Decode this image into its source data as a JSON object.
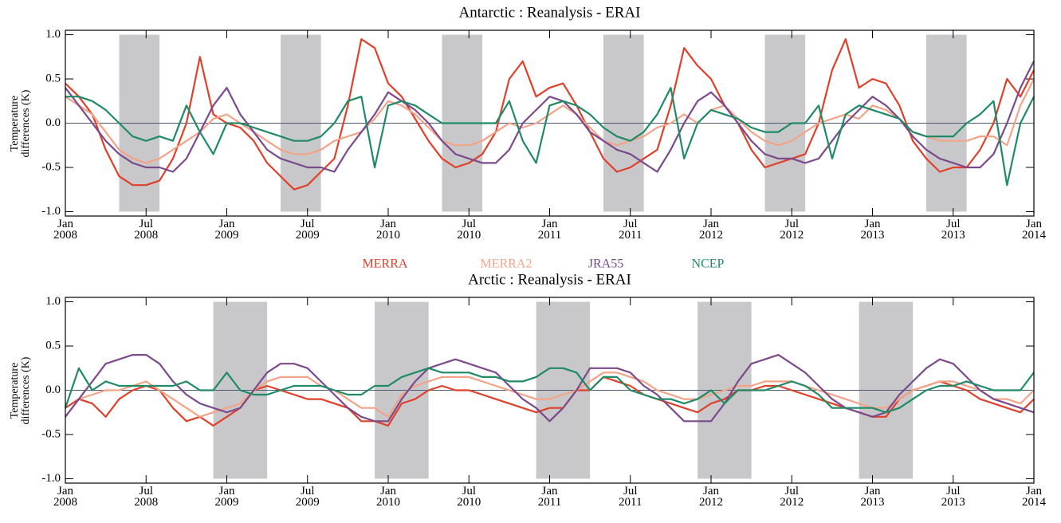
{
  "chart_data": [
    {
      "type": "line",
      "title": "Antarctic : Reanalysis - ERAI",
      "y_label": "Temperature differences (K)",
      "legend": true,
      "zero_line": true,
      "x": [
        "2008-01",
        "2008-02",
        "2008-03",
        "2008-04",
        "2008-05",
        "2008-06",
        "2008-07",
        "2008-08",
        "2008-09",
        "2008-10",
        "2008-11",
        "2008-12",
        "2009-01",
        "2009-02",
        "2009-03",
        "2009-04",
        "2009-05",
        "2009-06",
        "2009-07",
        "2009-08",
        "2009-09",
        "2009-10",
        "2009-11",
        "2009-12",
        "2010-01",
        "2010-02",
        "2010-03",
        "2010-04",
        "2010-05",
        "2010-06",
        "2010-07",
        "2010-08",
        "2010-09",
        "2010-10",
        "2010-11",
        "2010-12",
        "2011-01",
        "2011-02",
        "2011-03",
        "2011-04",
        "2011-05",
        "2011-06",
        "2011-07",
        "2011-08",
        "2011-09",
        "2011-10",
        "2011-11",
        "2011-12",
        "2012-01",
        "2012-02",
        "2012-03",
        "2012-04",
        "2012-05",
        "2012-06",
        "2012-07",
        "2012-08",
        "2012-09",
        "2012-10",
        "2012-11",
        "2012-12",
        "2013-01",
        "2013-02",
        "2013-03",
        "2013-04",
        "2013-05",
        "2013-06",
        "2013-07",
        "2013-08",
        "2013-09",
        "2013-10",
        "2013-11",
        "2013-12",
        "2014-01"
      ],
      "series": [
        {
          "name": "MERRA",
          "color": "#e0402a",
          "values": [
            0.45,
            0.3,
            0.1,
            -0.3,
            -0.6,
            -0.7,
            -0.7,
            -0.65,
            -0.4,
            0.0,
            0.75,
            0.1,
            0.0,
            -0.05,
            -0.2,
            -0.45,
            -0.6,
            -0.75,
            -0.7,
            -0.55,
            -0.4,
            0.2,
            0.95,
            0.85,
            0.45,
            0.3,
            0.05,
            -0.2,
            -0.4,
            -0.5,
            -0.45,
            -0.35,
            -0.1,
            0.5,
            0.7,
            0.3,
            0.4,
            0.45,
            0.2,
            -0.1,
            -0.4,
            -0.55,
            -0.5,
            -0.4,
            -0.3,
            0.2,
            0.85,
            0.65,
            0.5,
            0.2,
            0.0,
            -0.3,
            -0.5,
            -0.45,
            -0.4,
            -0.35,
            0.0,
            0.6,
            0.95,
            0.4,
            0.5,
            0.45,
            0.2,
            -0.2,
            -0.4,
            -0.55,
            -0.5,
            -0.5,
            -0.3,
            0.0,
            0.5,
            0.3,
            0.6
          ]
        },
        {
          "name": "MERRA2",
          "color": "#f2a488",
          "values": [
            0.3,
            0.2,
            0.1,
            -0.1,
            -0.3,
            -0.4,
            -0.45,
            -0.4,
            -0.3,
            -0.2,
            -0.1,
            0.05,
            0.1,
            0.0,
            -0.1,
            -0.2,
            -0.3,
            -0.35,
            -0.35,
            -0.3,
            -0.2,
            -0.15,
            -0.1,
            0.05,
            0.25,
            0.2,
            0.1,
            -0.05,
            -0.2,
            -0.25,
            -0.25,
            -0.2,
            -0.1,
            0.0,
            -0.05,
            0.0,
            0.1,
            0.2,
            0.1,
            -0.05,
            -0.2,
            -0.25,
            -0.2,
            -0.15,
            -0.05,
            0.0,
            0.1,
            0.0,
            0.15,
            0.2,
            0.05,
            -0.1,
            -0.2,
            -0.25,
            -0.2,
            -0.1,
            0.0,
            0.05,
            0.1,
            0.05,
            0.2,
            0.15,
            0.05,
            -0.1,
            -0.15,
            -0.2,
            -0.2,
            -0.2,
            -0.15,
            -0.15,
            -0.25,
            0.2,
            0.5
          ]
        },
        {
          "name": "JRA55",
          "color": "#7b4a8c",
          "values": [
            0.4,
            0.2,
            0.0,
            -0.2,
            -0.35,
            -0.45,
            -0.5,
            -0.5,
            -0.55,
            -0.4,
            -0.1,
            0.2,
            0.4,
            0.1,
            -0.1,
            -0.3,
            -0.4,
            -0.45,
            -0.5,
            -0.5,
            -0.55,
            -0.3,
            -0.1,
            0.1,
            0.35,
            0.25,
            0.15,
            0.0,
            -0.2,
            -0.35,
            -0.4,
            -0.45,
            -0.45,
            -0.3,
            0.0,
            0.15,
            0.3,
            0.25,
            0.1,
            -0.1,
            -0.2,
            -0.3,
            -0.35,
            -0.45,
            -0.55,
            -0.3,
            0.0,
            0.25,
            0.35,
            0.2,
            0.0,
            -0.2,
            -0.35,
            -0.4,
            -0.4,
            -0.45,
            -0.4,
            -0.2,
            0.0,
            0.15,
            0.3,
            0.2,
            0.05,
            -0.15,
            -0.3,
            -0.4,
            -0.45,
            -0.5,
            -0.5,
            -0.35,
            0.0,
            0.4,
            0.7
          ]
        },
        {
          "name": "NCEP",
          "color": "#1e8a66",
          "values": [
            0.3,
            0.3,
            0.25,
            0.15,
            0.0,
            -0.15,
            -0.2,
            -0.15,
            -0.2,
            0.2,
            -0.1,
            -0.35,
            0.0,
            0.0,
            -0.05,
            -0.1,
            -0.15,
            -0.2,
            -0.2,
            -0.15,
            0.0,
            0.25,
            0.3,
            -0.5,
            0.2,
            0.25,
            0.2,
            0.1,
            0.0,
            0.0,
            0.0,
            0.0,
            0.0,
            0.25,
            -0.2,
            -0.45,
            0.2,
            0.25,
            0.2,
            0.1,
            -0.05,
            -0.15,
            -0.2,
            -0.1,
            0.1,
            0.4,
            -0.4,
            0.0,
            0.15,
            0.1,
            0.05,
            -0.05,
            -0.1,
            -0.1,
            0.0,
            0.0,
            0.2,
            -0.4,
            0.1,
            0.2,
            0.15,
            0.1,
            0.05,
            -0.1,
            -0.15,
            -0.15,
            -0.15,
            0.0,
            0.1,
            0.25,
            -0.7,
            0.0,
            0.3
          ]
        }
      ],
      "shaded": [
        [
          "2008-05",
          "2008-08"
        ],
        [
          "2009-05",
          "2009-08"
        ],
        [
          "2010-05",
          "2010-08"
        ],
        [
          "2011-05",
          "2011-08"
        ],
        [
          "2012-05",
          "2012-08"
        ],
        [
          "2013-05",
          "2013-08"
        ]
      ],
      "shade_color": "#c8c8ca",
      "xlim": [
        "2008-01",
        "2014-01"
      ],
      "xticks": [
        {
          "value": "2008-01",
          "label": "Jan 2008"
        },
        {
          "value": "2008-07",
          "label": "Jul 2008"
        },
        {
          "value": "2009-01",
          "label": "Jan 2009"
        },
        {
          "value": "2009-07",
          "label": "Jul 2009"
        },
        {
          "value": "2010-01",
          "label": "Jan 2010"
        },
        {
          "value": "2010-07",
          "label": "Jul 2010"
        },
        {
          "value": "2011-01",
          "label": "Jan 2011"
        },
        {
          "value": "2011-07",
          "label": "Jul 2011"
        },
        {
          "value": "2012-01",
          "label": "Jan 2012"
        },
        {
          "value": "2012-07",
          "label": "Jul 2012"
        },
        {
          "value": "2013-01",
          "label": "Jan 2013"
        },
        {
          "value": "2013-07",
          "label": "Jul 2013"
        },
        {
          "value": "2014-01",
          "label": "Jan 2014"
        }
      ],
      "ylim": [
        -1.05,
        1.05
      ],
      "yticks": [
        {
          "value": 1,
          "label": "1.0"
        },
        {
          "value": 0.5,
          "label": "0.5"
        },
        {
          "value": 0,
          "label": "0.0"
        },
        {
          "value": -0.5,
          "label": "-0.5"
        },
        {
          "value": -1,
          "label": "-1.0"
        }
      ]
    },
    {
      "type": "line",
      "title": "Arctic : Reanalysis - ERAI",
      "y_label": "Temperature differences (K)",
      "legend": false,
      "zero_line": true,
      "x": [
        "2008-01",
        "2008-02",
        "2008-03",
        "2008-04",
        "2008-05",
        "2008-06",
        "2008-07",
        "2008-08",
        "2008-09",
        "2008-10",
        "2008-11",
        "2008-12",
        "2009-01",
        "2009-02",
        "2009-03",
        "2009-04",
        "2009-05",
        "2009-06",
        "2009-07",
        "2009-08",
        "2009-09",
        "2009-10",
        "2009-11",
        "2009-12",
        "2010-01",
        "2010-02",
        "2010-03",
        "2010-04",
        "2010-05",
        "2010-06",
        "2010-07",
        "2010-08",
        "2010-09",
        "2010-10",
        "2010-11",
        "2010-12",
        "2011-01",
        "2011-02",
        "2011-03",
        "2011-04",
        "2011-05",
        "2011-06",
        "2011-07",
        "2011-08",
        "2011-09",
        "2011-10",
        "2011-11",
        "2011-12",
        "2012-01",
        "2012-02",
        "2012-03",
        "2012-04",
        "2012-05",
        "2012-06",
        "2012-07",
        "2012-08",
        "2012-09",
        "2012-10",
        "2012-11",
        "2012-12",
        "2013-01",
        "2013-02",
        "2013-03",
        "2013-04",
        "2013-05",
        "2013-06",
        "2013-07",
        "2013-08",
        "2013-09",
        "2013-10",
        "2013-11",
        "2013-12",
        "2014-01"
      ],
      "series": [
        {
          "color": "#e0402a",
          "values": [
            -0.2,
            -0.1,
            -0.15,
            -0.3,
            -0.1,
            0.0,
            0.05,
            0.0,
            -0.2,
            -0.35,
            -0.3,
            -0.4,
            -0.3,
            -0.2,
            0.0,
            0.05,
            0.0,
            -0.05,
            -0.1,
            -0.1,
            -0.15,
            -0.2,
            -0.35,
            -0.35,
            -0.4,
            -0.15,
            -0.1,
            0.0,
            0.05,
            0.0,
            0.0,
            -0.05,
            -0.1,
            -0.15,
            -0.2,
            -0.25,
            -0.2,
            -0.2,
            0.0,
            0.0,
            0.15,
            0.1,
            0.05,
            -0.05,
            -0.1,
            -0.15,
            -0.2,
            -0.25,
            -0.15,
            -0.1,
            0.0,
            0.0,
            0.05,
            0.05,
            0.0,
            -0.05,
            -0.1,
            -0.15,
            -0.2,
            -0.25,
            -0.3,
            -0.3,
            -0.1,
            0.0,
            0.05,
            0.1,
            0.05,
            0.0,
            -0.1,
            -0.15,
            -0.2,
            -0.25,
            -0.1
          ]
        },
        {
          "color": "#f2a488",
          "values": [
            -0.3,
            -0.1,
            -0.05,
            0.0,
            0.0,
            0.05,
            0.1,
            0.0,
            -0.1,
            -0.2,
            -0.3,
            -0.25,
            -0.2,
            -0.15,
            0.0,
            0.1,
            0.15,
            0.15,
            0.15,
            0.05,
            0.0,
            -0.1,
            -0.2,
            -0.2,
            -0.3,
            -0.05,
            0.05,
            0.1,
            0.15,
            0.15,
            0.15,
            0.1,
            0.05,
            0.0,
            -0.05,
            -0.1,
            -0.1,
            -0.05,
            0.0,
            0.1,
            0.2,
            0.2,
            0.15,
            0.1,
            0.0,
            -0.05,
            -0.1,
            -0.1,
            -0.05,
            0.0,
            0.05,
            0.05,
            0.1,
            0.1,
            0.1,
            0.05,
            0.0,
            -0.05,
            -0.1,
            -0.15,
            -0.2,
            -0.2,
            -0.1,
            0.0,
            0.05,
            0.1,
            0.1,
            0.05,
            0.0,
            -0.1,
            -0.1,
            -0.15,
            0.0
          ]
        },
        {
          "color": "#7b4a8c",
          "values": [
            -0.3,
            -0.1,
            0.1,
            0.3,
            0.35,
            0.4,
            0.4,
            0.3,
            0.1,
            -0.05,
            -0.15,
            -0.2,
            -0.25,
            -0.2,
            0.0,
            0.2,
            0.3,
            0.3,
            0.25,
            0.1,
            -0.05,
            -0.2,
            -0.3,
            -0.35,
            -0.35,
            -0.1,
            0.1,
            0.25,
            0.3,
            0.35,
            0.3,
            0.25,
            0.2,
            0.05,
            -0.1,
            -0.2,
            -0.35,
            -0.2,
            0.0,
            0.25,
            0.25,
            0.25,
            0.2,
            0.05,
            -0.05,
            -0.2,
            -0.35,
            -0.35,
            -0.35,
            -0.15,
            0.1,
            0.3,
            0.35,
            0.4,
            0.3,
            0.2,
            0.05,
            -0.1,
            -0.2,
            -0.25,
            -0.3,
            -0.25,
            -0.05,
            0.1,
            0.25,
            0.35,
            0.3,
            0.15,
            0.0,
            -0.1,
            -0.15,
            -0.2,
            -0.25
          ]
        },
        {
          "color": "#1e8a66",
          "values": [
            -0.2,
            0.25,
            0.0,
            0.1,
            0.05,
            0.05,
            0.05,
            0.05,
            0.05,
            0.1,
            0.0,
            0.0,
            0.2,
            0.0,
            -0.05,
            -0.05,
            0.0,
            0.05,
            0.05,
            0.05,
            0.0,
            -0.05,
            -0.05,
            0.05,
            0.05,
            0.15,
            0.2,
            0.25,
            0.2,
            0.2,
            0.2,
            0.15,
            0.15,
            0.1,
            0.1,
            0.15,
            0.25,
            0.25,
            0.2,
            0.0,
            0.15,
            0.15,
            0.0,
            -0.05,
            -0.1,
            -0.1,
            -0.15,
            -0.1,
            0.0,
            -0.15,
            0.0,
            0.0,
            0.0,
            0.05,
            0.1,
            0.05,
            -0.05,
            -0.2,
            -0.2,
            -0.2,
            -0.2,
            -0.25,
            -0.2,
            -0.1,
            0.0,
            0.05,
            0.05,
            0.1,
            0.05,
            0.0,
            0.0,
            0.0,
            0.2
          ]
        }
      ],
      "shaded": [
        [
          "2008-12",
          "2009-04"
        ],
        [
          "2009-12",
          "2010-04"
        ],
        [
          "2010-12",
          "2011-04"
        ],
        [
          "2011-12",
          "2012-04"
        ],
        [
          "2012-12",
          "2013-04"
        ]
      ],
      "shade_color": "#c8c8ca",
      "xlim": [
        "2008-01",
        "2014-01"
      ],
      "xticks": [
        {
          "value": "2008-01",
          "label": "Jan 2008"
        },
        {
          "value": "2008-07",
          "label": "Jul 2008"
        },
        {
          "value": "2009-01",
          "label": "Jan 2009"
        },
        {
          "value": "2009-07",
          "label": "Jul 2009"
        },
        {
          "value": "2010-01",
          "label": "Jan 2010"
        },
        {
          "value": "2010-07",
          "label": "Jul 2010"
        },
        {
          "value": "2011-01",
          "label": "Jan 2011"
        },
        {
          "value": "2011-07",
          "label": "Jul 2011"
        },
        {
          "value": "2012-01",
          "label": "Jan 2012"
        },
        {
          "value": "2012-07",
          "label": "Jul 2012"
        },
        {
          "value": "2013-01",
          "label": "Jan 2013"
        },
        {
          "value": "2013-07",
          "label": "Jul 2013"
        },
        {
          "value": "2014-01",
          "label": "Jan 2014"
        }
      ],
      "ylim": [
        -1.05,
        1.05
      ],
      "yticks": [
        {
          "value": 1,
          "label": "1.0"
        },
        {
          "value": 0.5,
          "label": "0.5"
        },
        {
          "value": 0,
          "label": "0.0"
        },
        {
          "value": -0.5,
          "label": "-0.5"
        },
        {
          "value": -1,
          "label": "-1.0"
        }
      ]
    }
  ]
}
